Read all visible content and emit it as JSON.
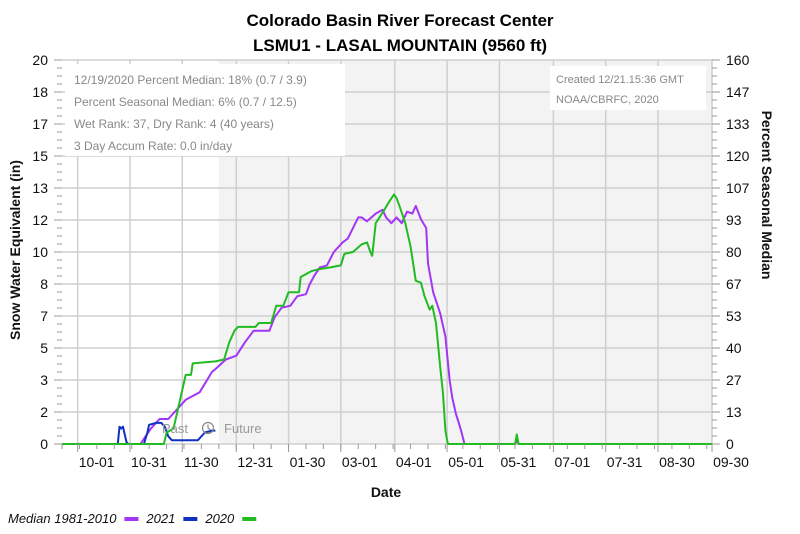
{
  "chart_data": {
    "type": "line",
    "title": "Colorado Basin River Forecast Center",
    "subtitle": "LSMU1 - LASAL MOUNTAIN (9560 ft)",
    "xlabel": "Date",
    "ylabel": "Snow Water Equivalent (in)",
    "ylabel_right": "Percent Seasonal Median",
    "x_unit": "days since 10-01",
    "xlim": [
      -9,
      364
    ],
    "ylim": [
      0,
      20
    ],
    "ylim_right": [
      0,
      160
    ],
    "grid": true,
    "future_start_day": 81,
    "xticks": [
      {
        "day": 0,
        "label": "10-01"
      },
      {
        "day": 30,
        "label": "10-31"
      },
      {
        "day": 60,
        "label": "11-30"
      },
      {
        "day": 91,
        "label": "12-31"
      },
      {
        "day": 121,
        "label": "01-30"
      },
      {
        "day": 151,
        "label": "03-01"
      },
      {
        "day": 182,
        "label": "04-01"
      },
      {
        "day": 212,
        "label": "05-01"
      },
      {
        "day": 242,
        "label": "05-31"
      },
      {
        "day": 273,
        "label": "07-01"
      },
      {
        "day": 303,
        "label": "07-31"
      },
      {
        "day": 333,
        "label": "08-30"
      },
      {
        "day": 364,
        "label": "09-30"
      }
    ],
    "yticks_left": [
      "0",
      "2",
      "3",
      "5",
      "7",
      "8",
      "10",
      "12",
      "13",
      "15",
      "17",
      "18",
      "20"
    ],
    "yticks_right": [
      "0",
      "13",
      "27",
      "40",
      "53",
      "67",
      "80",
      "93",
      "107",
      "120",
      "133",
      "147",
      "160"
    ],
    "legend_position": "bottom-left",
    "series": [
      {
        "name": "Median 1981-2010",
        "color": "#a335f5",
        "points": [
          [
            -9,
            0
          ],
          [
            36,
            0
          ],
          [
            39,
            0.4
          ],
          [
            42,
            0.8
          ],
          [
            47,
            1.3
          ],
          [
            52,
            1.3
          ],
          [
            57,
            1.8
          ],
          [
            62,
            2.3
          ],
          [
            70,
            2.7
          ],
          [
            77,
            3.75
          ],
          [
            79,
            3.9
          ],
          [
            85,
            4.4
          ],
          [
            91,
            4.6
          ],
          [
            96,
            5.3
          ],
          [
            101,
            5.9
          ],
          [
            110,
            5.9
          ],
          [
            113,
            6.6
          ],
          [
            117,
            7.1
          ],
          [
            122,
            7.2
          ],
          [
            126,
            7.7
          ],
          [
            131,
            7.8
          ],
          [
            133,
            8.3
          ],
          [
            136,
            8.8
          ],
          [
            139,
            9.2
          ],
          [
            143,
            9.3
          ],
          [
            147,
            10.0
          ],
          [
            152,
            10.5
          ],
          [
            155,
            10.7
          ],
          [
            161,
            11.8
          ],
          [
            163,
            11.8
          ],
          [
            166,
            11.6
          ],
          [
            171,
            12.0
          ],
          [
            175,
            12.2
          ],
          [
            177,
            11.8
          ],
          [
            180,
            11.5
          ],
          [
            183,
            11.8
          ],
          [
            186,
            11.5
          ],
          [
            189,
            12.1
          ],
          [
            192,
            12.0
          ],
          [
            194,
            12.4
          ],
          [
            197,
            11.7
          ],
          [
            200,
            11.25
          ],
          [
            201,
            9.4
          ],
          [
            204,
            7.9
          ],
          [
            208,
            6.8
          ],
          [
            211,
            5.6
          ],
          [
            213.5,
            3.3
          ],
          [
            215,
            2.4
          ],
          [
            217,
            1.6
          ],
          [
            220,
            0.7
          ],
          [
            222,
            0
          ],
          [
            251,
            0
          ],
          [
            252,
            0.2
          ],
          [
            253,
            0
          ],
          [
            364,
            0
          ]
        ]
      },
      {
        "name": "2021",
        "color": "#1030c0",
        "points": [
          [
            -9,
            0
          ],
          [
            23,
            0
          ],
          [
            24,
            0.9
          ],
          [
            25,
            0.8
          ],
          [
            26,
            0.9
          ],
          [
            27,
            0.5
          ],
          [
            28,
            0.1
          ],
          [
            29,
            0
          ],
          [
            38,
            0
          ],
          [
            40,
            0.6
          ],
          [
            41,
            1.0
          ],
          [
            45,
            1.1
          ],
          [
            48,
            1.1
          ],
          [
            50,
            0.9
          ],
          [
            52,
            0.4
          ],
          [
            54,
            0.2
          ],
          [
            69,
            0.2
          ],
          [
            73,
            0.6
          ],
          [
            77,
            0.7
          ],
          [
            79,
            0.7
          ]
        ]
      },
      {
        "name": "2020",
        "color": "#22bb22",
        "points": [
          [
            -9,
            0
          ],
          [
            49.5,
            0
          ],
          [
            51,
            0.6
          ],
          [
            55,
            0.8
          ],
          [
            62,
            3.6
          ],
          [
            65,
            3.6
          ],
          [
            66,
            4.2
          ],
          [
            79,
            4.3
          ],
          [
            84,
            4.4
          ],
          [
            87,
            5.3
          ],
          [
            90,
            5.9
          ],
          [
            92,
            6.1
          ],
          [
            102,
            6.1
          ],
          [
            104,
            6.3
          ],
          [
            111,
            6.3
          ],
          [
            114,
            7.2
          ],
          [
            118,
            7.2
          ],
          [
            121,
            7.9
          ],
          [
            127,
            7.9
          ],
          [
            128,
            8.7
          ],
          [
            134,
            9.0
          ],
          [
            138,
            9.1
          ],
          [
            145,
            9.2
          ],
          [
            151,
            9.3
          ],
          [
            153,
            9.9
          ],
          [
            158,
            10.0
          ],
          [
            163,
            10.4
          ],
          [
            166,
            10.5
          ],
          [
            168,
            10.0
          ],
          [
            169,
            9.8
          ],
          [
            171,
            11.5
          ],
          [
            176,
            12.2
          ],
          [
            178.6,
            12.6
          ],
          [
            181.5,
            13.0
          ],
          [
            183,
            12.8
          ],
          [
            185,
            12.3
          ],
          [
            188,
            11.5
          ],
          [
            191,
            10.3
          ],
          [
            194,
            8.5
          ],
          [
            197,
            8.4
          ],
          [
            199,
            7.7
          ],
          [
            202,
            7.0
          ],
          [
            203.5,
            7.2
          ],
          [
            205.6,
            6.3
          ],
          [
            208,
            4.0
          ],
          [
            209.6,
            2.7
          ],
          [
            211,
            0.7
          ],
          [
            212.4,
            0
          ],
          [
            251,
            0
          ],
          [
            252,
            0.5
          ],
          [
            253,
            0
          ],
          [
            364,
            0
          ]
        ]
      }
    ]
  },
  "info_box": {
    "line1": "12/19/2020 Percent Median: 18% (0.7 / 3.9)",
    "line2": "Percent Seasonal Median: 6% (0.7 / 12.5)",
    "line3": "Wet Rank: 37, Dry Rank: 4  (40 years)",
    "line4": "3 Day Accum Rate: 0.0 in/day"
  },
  "created_box": {
    "line1": "Created 12/21.15:36 GMT",
    "line2": "NOAA/CBRFC, 2020"
  },
  "past_label": "Past",
  "future_label": "Future"
}
